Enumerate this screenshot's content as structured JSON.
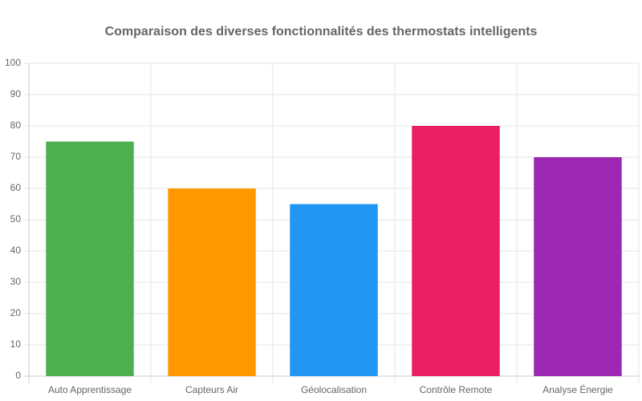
{
  "chart_data": {
    "type": "bar",
    "title": "Comparaison des diverses fonctionnalités des thermostats intelligents",
    "categories": [
      "Auto Apprentissage",
      "Capteurs Air",
      "Géolocalisation",
      "Contrôle Remote",
      "Analyse Énergie"
    ],
    "values": [
      75,
      60,
      55,
      80,
      70
    ],
    "colors": [
      "#4caf50",
      "#ff9800",
      "#2196f3",
      "#e91e63",
      "#9c27b0"
    ],
    "ylim": [
      0,
      100
    ],
    "yticks": [
      0,
      10,
      20,
      30,
      40,
      50,
      60,
      70,
      80,
      90,
      100
    ],
    "grid": true
  }
}
